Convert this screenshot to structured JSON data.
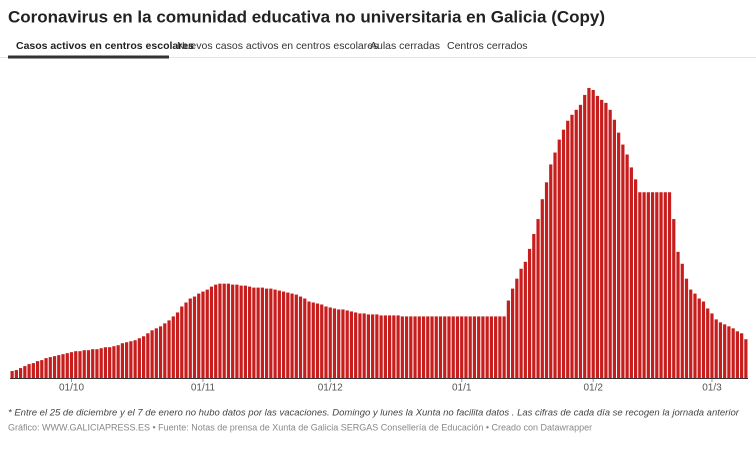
{
  "header": {
    "title": "Coronavirus en la comunidad educativa no universitaria en Galicia (Copy)",
    "tabs": [
      "Casos activos en centros escolares",
      "Nuevos casos activos en centros escolares",
      "Aulas cerradas",
      "Centros cerrados"
    ]
  },
  "chart_data": {
    "type": "bar",
    "color": "#c71e1d",
    "ylim": [
      0,
      300
    ],
    "categories": [
      null,
      null,
      null,
      null,
      null,
      null,
      null,
      null,
      null,
      null,
      null,
      null,
      null,
      null,
      "01/10",
      null,
      null,
      null,
      null,
      null,
      null,
      null,
      null,
      null,
      null,
      null,
      null,
      null,
      null,
      null,
      null,
      null,
      null,
      null,
      null,
      null,
      null,
      null,
      null,
      null,
      null,
      null,
      null,
      null,
      null,
      "01/11",
      null,
      null,
      null,
      null,
      null,
      null,
      null,
      null,
      null,
      null,
      null,
      null,
      null,
      null,
      null,
      null,
      null,
      null,
      null,
      null,
      null,
      null,
      null,
      null,
      null,
      null,
      null,
      null,
      null,
      "01/12",
      null,
      null,
      null,
      null,
      null,
      null,
      null,
      null,
      null,
      null,
      null,
      null,
      null,
      null,
      null,
      null,
      null,
      null,
      null,
      null,
      null,
      null,
      null,
      null,
      null,
      null,
      null,
      null,
      null,
      null,
      "01/1",
      null,
      null,
      null,
      null,
      null,
      null,
      null,
      null,
      null,
      null,
      null,
      null,
      null,
      null,
      null,
      null,
      null,
      null,
      null,
      null,
      null,
      null,
      null,
      null,
      null,
      null,
      null,
      null,
      null,
      null,
      "01/2",
      null,
      null,
      null,
      null,
      null,
      null,
      null,
      null,
      null,
      null,
      null,
      null,
      null,
      null,
      null,
      null,
      null,
      null,
      null,
      null,
      null,
      null,
      null,
      null,
      null,
      null,
      null,
      "01/3",
      null,
      null,
      null,
      null,
      null,
      null,
      null,
      null
    ],
    "values": [
      7,
      8,
      10,
      12,
      14,
      15,
      17,
      18,
      20,
      21,
      22,
      23,
      24,
      25,
      26,
      27,
      27,
      28,
      28,
      29,
      29,
      30,
      31,
      31,
      32,
      33,
      35,
      36,
      37,
      38,
      40,
      42,
      45,
      48,
      50,
      52,
      55,
      58,
      62,
      66,
      72,
      76,
      80,
      82,
      85,
      87,
      89,
      92,
      94,
      95,
      95,
      95,
      94,
      94,
      93,
      93,
      92,
      91,
      91,
      91,
      90,
      90,
      89,
      88,
      87,
      86,
      85,
      84,
      82,
      80,
      77,
      76,
      75,
      74,
      72,
      71,
      70,
      69,
      69,
      68,
      67,
      66,
      65,
      65,
      64,
      64,
      64,
      63,
      63,
      63,
      63,
      63,
      62,
      62,
      62,
      62,
      62,
      62,
      62,
      62,
      62,
      62,
      62,
      62,
      62,
      62,
      62,
      62,
      62,
      62,
      62,
      62,
      62,
      62,
      62,
      62,
      62,
      78,
      90,
      100,
      110,
      117,
      130,
      145,
      160,
      180,
      197,
      215,
      227,
      240,
      250,
      259,
      265,
      270,
      275,
      285,
      292,
      290,
      284,
      280,
      277,
      270,
      260,
      247,
      235,
      225,
      212,
      200,
      187,
      187,
      187,
      187,
      187,
      187,
      187,
      187,
      160,
      127,
      115,
      100,
      89,
      85,
      80,
      77,
      70,
      65,
      59,
      56,
      54,
      52,
      50,
      47,
      45,
      39
    ]
  },
  "footer": {
    "note": "* Entre el 25 de diciembre y el 7 de enero no hubo datos por las vacaciones. Domingo y lunes la Xunta no facilita datos . Las cifras de cada día se recogen la jornada anterior",
    "credits": "Gráfico: WWW.GALICIAPRESS.ES • Fuente: Notas de prensa de Xunta de Galicia SERGAS Consellería de Educación • Creado con Datawrapper"
  }
}
